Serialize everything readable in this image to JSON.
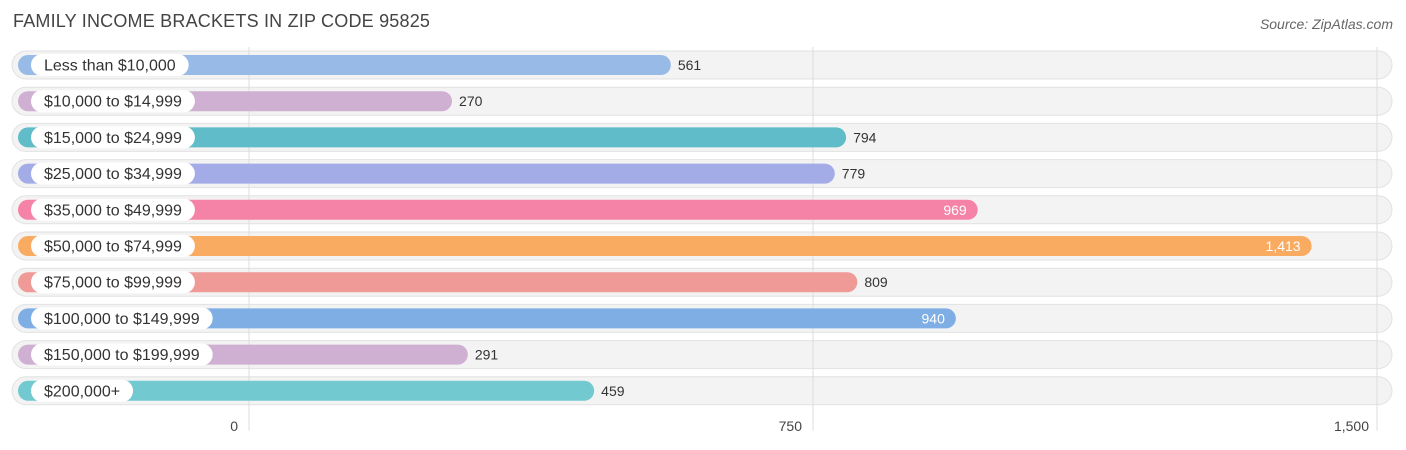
{
  "header": {
    "title": "FAMILY INCOME BRACKETS IN ZIP CODE 95825",
    "source": "Source: ZipAtlas.com"
  },
  "chart_data": {
    "type": "bar",
    "orientation": "horizontal",
    "title": "FAMILY INCOME BRACKETS IN ZIP CODE 95825",
    "categories": [
      "Less than $10,000",
      "$10,000 to $14,999",
      "$15,000 to $24,999",
      "$25,000 to $34,999",
      "$35,000 to $49,999",
      "$50,000 to $74,999",
      "$75,000 to $99,999",
      "$100,000 to $149,999",
      "$150,000 to $199,999",
      "$200,000+"
    ],
    "values": [
      561,
      270,
      794,
      779,
      969,
      1413,
      809,
      940,
      291,
      459
    ],
    "value_labels": [
      "561",
      "270",
      "794",
      "779",
      "969",
      "1,413",
      "809",
      "940",
      "291",
      "459"
    ],
    "colors": [
      "#97bbe6",
      "#d0b0d2",
      "#5fbcc8",
      "#a3ace7",
      "#f583a8",
      "#f9ab62",
      "#ef9a97",
      "#7eaee4",
      "#d0b0d2",
      "#72c9d0"
    ],
    "xlim": [
      0,
      1500
    ],
    "xticks": [
      0,
      750,
      1500
    ],
    "xtick_labels": [
      "0",
      "750",
      "1,500"
    ],
    "grid": true
  }
}
